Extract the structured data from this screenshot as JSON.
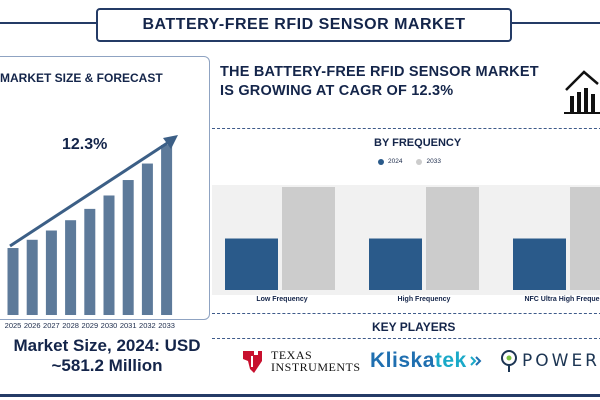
{
  "header": {
    "title": "BATTERY-FREE RFID SENSOR MARKET"
  },
  "left": {
    "heading": "MARKET SIZE & FORECAST",
    "cagr_label": "12.3%",
    "market_size_line1": "Market Size, 2024: USD",
    "market_size_line2": "~581.2 Million"
  },
  "headline": {
    "line1": "THE BATTERY-FREE RFID SENSOR MARKET",
    "line2": "IS GROWING AT CAGR OF 12.3%"
  },
  "key_players": {
    "title": "KEY PLAYERS",
    "ti_line1": "TEXAS",
    "ti_line2": "INSTRUMENTS",
    "kliskatek_a": "Kliska",
    "kliskatek_b": "tek",
    "powercast": "POWERCA"
  },
  "colors": {
    "navy": "#14254a",
    "bar_blue": "#2a5a8a",
    "bar_grey": "#cccccc",
    "growth_bar": "#5d7a9a"
  },
  "chart_data": [
    {
      "type": "bar",
      "title": "MARKET SIZE & FORECAST",
      "categories": [
        "2025",
        "2026",
        "2027",
        "2028",
        "2029",
        "2030",
        "2031",
        "2032",
        "2033"
      ],
      "values": [
        0.65,
        0.73,
        0.82,
        0.92,
        1.03,
        1.16,
        1.31,
        1.47,
        1.65
      ],
      "annotation": "12.3%"
    },
    {
      "type": "bar",
      "title": "BY FREQUENCY",
      "categories": [
        "Low Frequency",
        "High Frequency",
        "NFC Ultra High Freque"
      ],
      "series": [
        {
          "name": "2024",
          "values": [
            0.5,
            0.5,
            0.5
          ]
        },
        {
          "name": "2033",
          "values": [
            1.0,
            1.0,
            1.0
          ]
        }
      ]
    }
  ]
}
